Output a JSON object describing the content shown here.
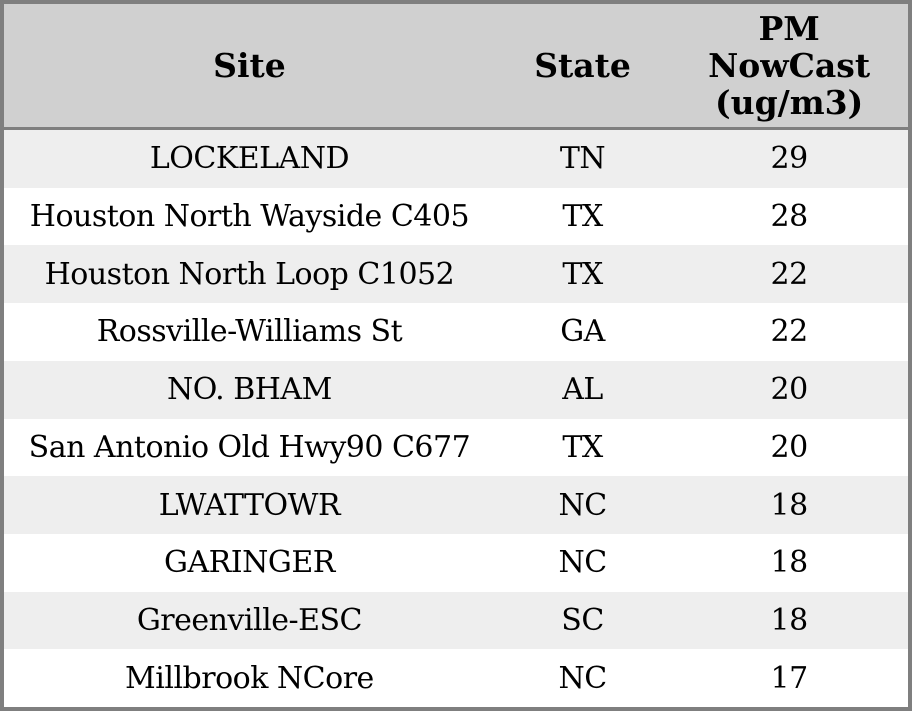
{
  "chart_data": {
    "type": "table",
    "title": "",
    "columns": [
      "Site",
      "State",
      "PM NowCast (ug/m3)"
    ],
    "header_display": {
      "site": "Site",
      "state": "State",
      "pm": "PM\nNowCast\n(ug/m3)"
    },
    "rows": [
      {
        "site": "LOCKELAND",
        "state": "TN",
        "pm_nowcast": 29
      },
      {
        "site": "Houston North Wayside C405",
        "state": "TX",
        "pm_nowcast": 28
      },
      {
        "site": "Houston North Loop C1052",
        "state": "TX",
        "pm_nowcast": 22
      },
      {
        "site": "Rossville-Williams St",
        "state": "GA",
        "pm_nowcast": 22
      },
      {
        "site": "NO. BHAM",
        "state": "AL",
        "pm_nowcast": 20
      },
      {
        "site": "San Antonio Old Hwy90 C677",
        "state": "TX",
        "pm_nowcast": 20
      },
      {
        "site": "LWATTOWR",
        "state": "NC",
        "pm_nowcast": 18
      },
      {
        "site": "GARINGER",
        "state": "NC",
        "pm_nowcast": 18
      },
      {
        "site": "Greenville-ESC",
        "state": "SC",
        "pm_nowcast": 18
      },
      {
        "site": "Millbrook NCore",
        "state": "NC",
        "pm_nowcast": 17
      }
    ],
    "layout": {
      "grid": "off",
      "row_shading": "alternating, first data row shaded",
      "alignment": "all columns centered"
    }
  },
  "colors": {
    "header_bg": "#d0d0d0",
    "row_bg": "#ffffff",
    "row_alt_bg": "#eeeeee",
    "border": "#7f7f7f",
    "text": "#000000"
  }
}
